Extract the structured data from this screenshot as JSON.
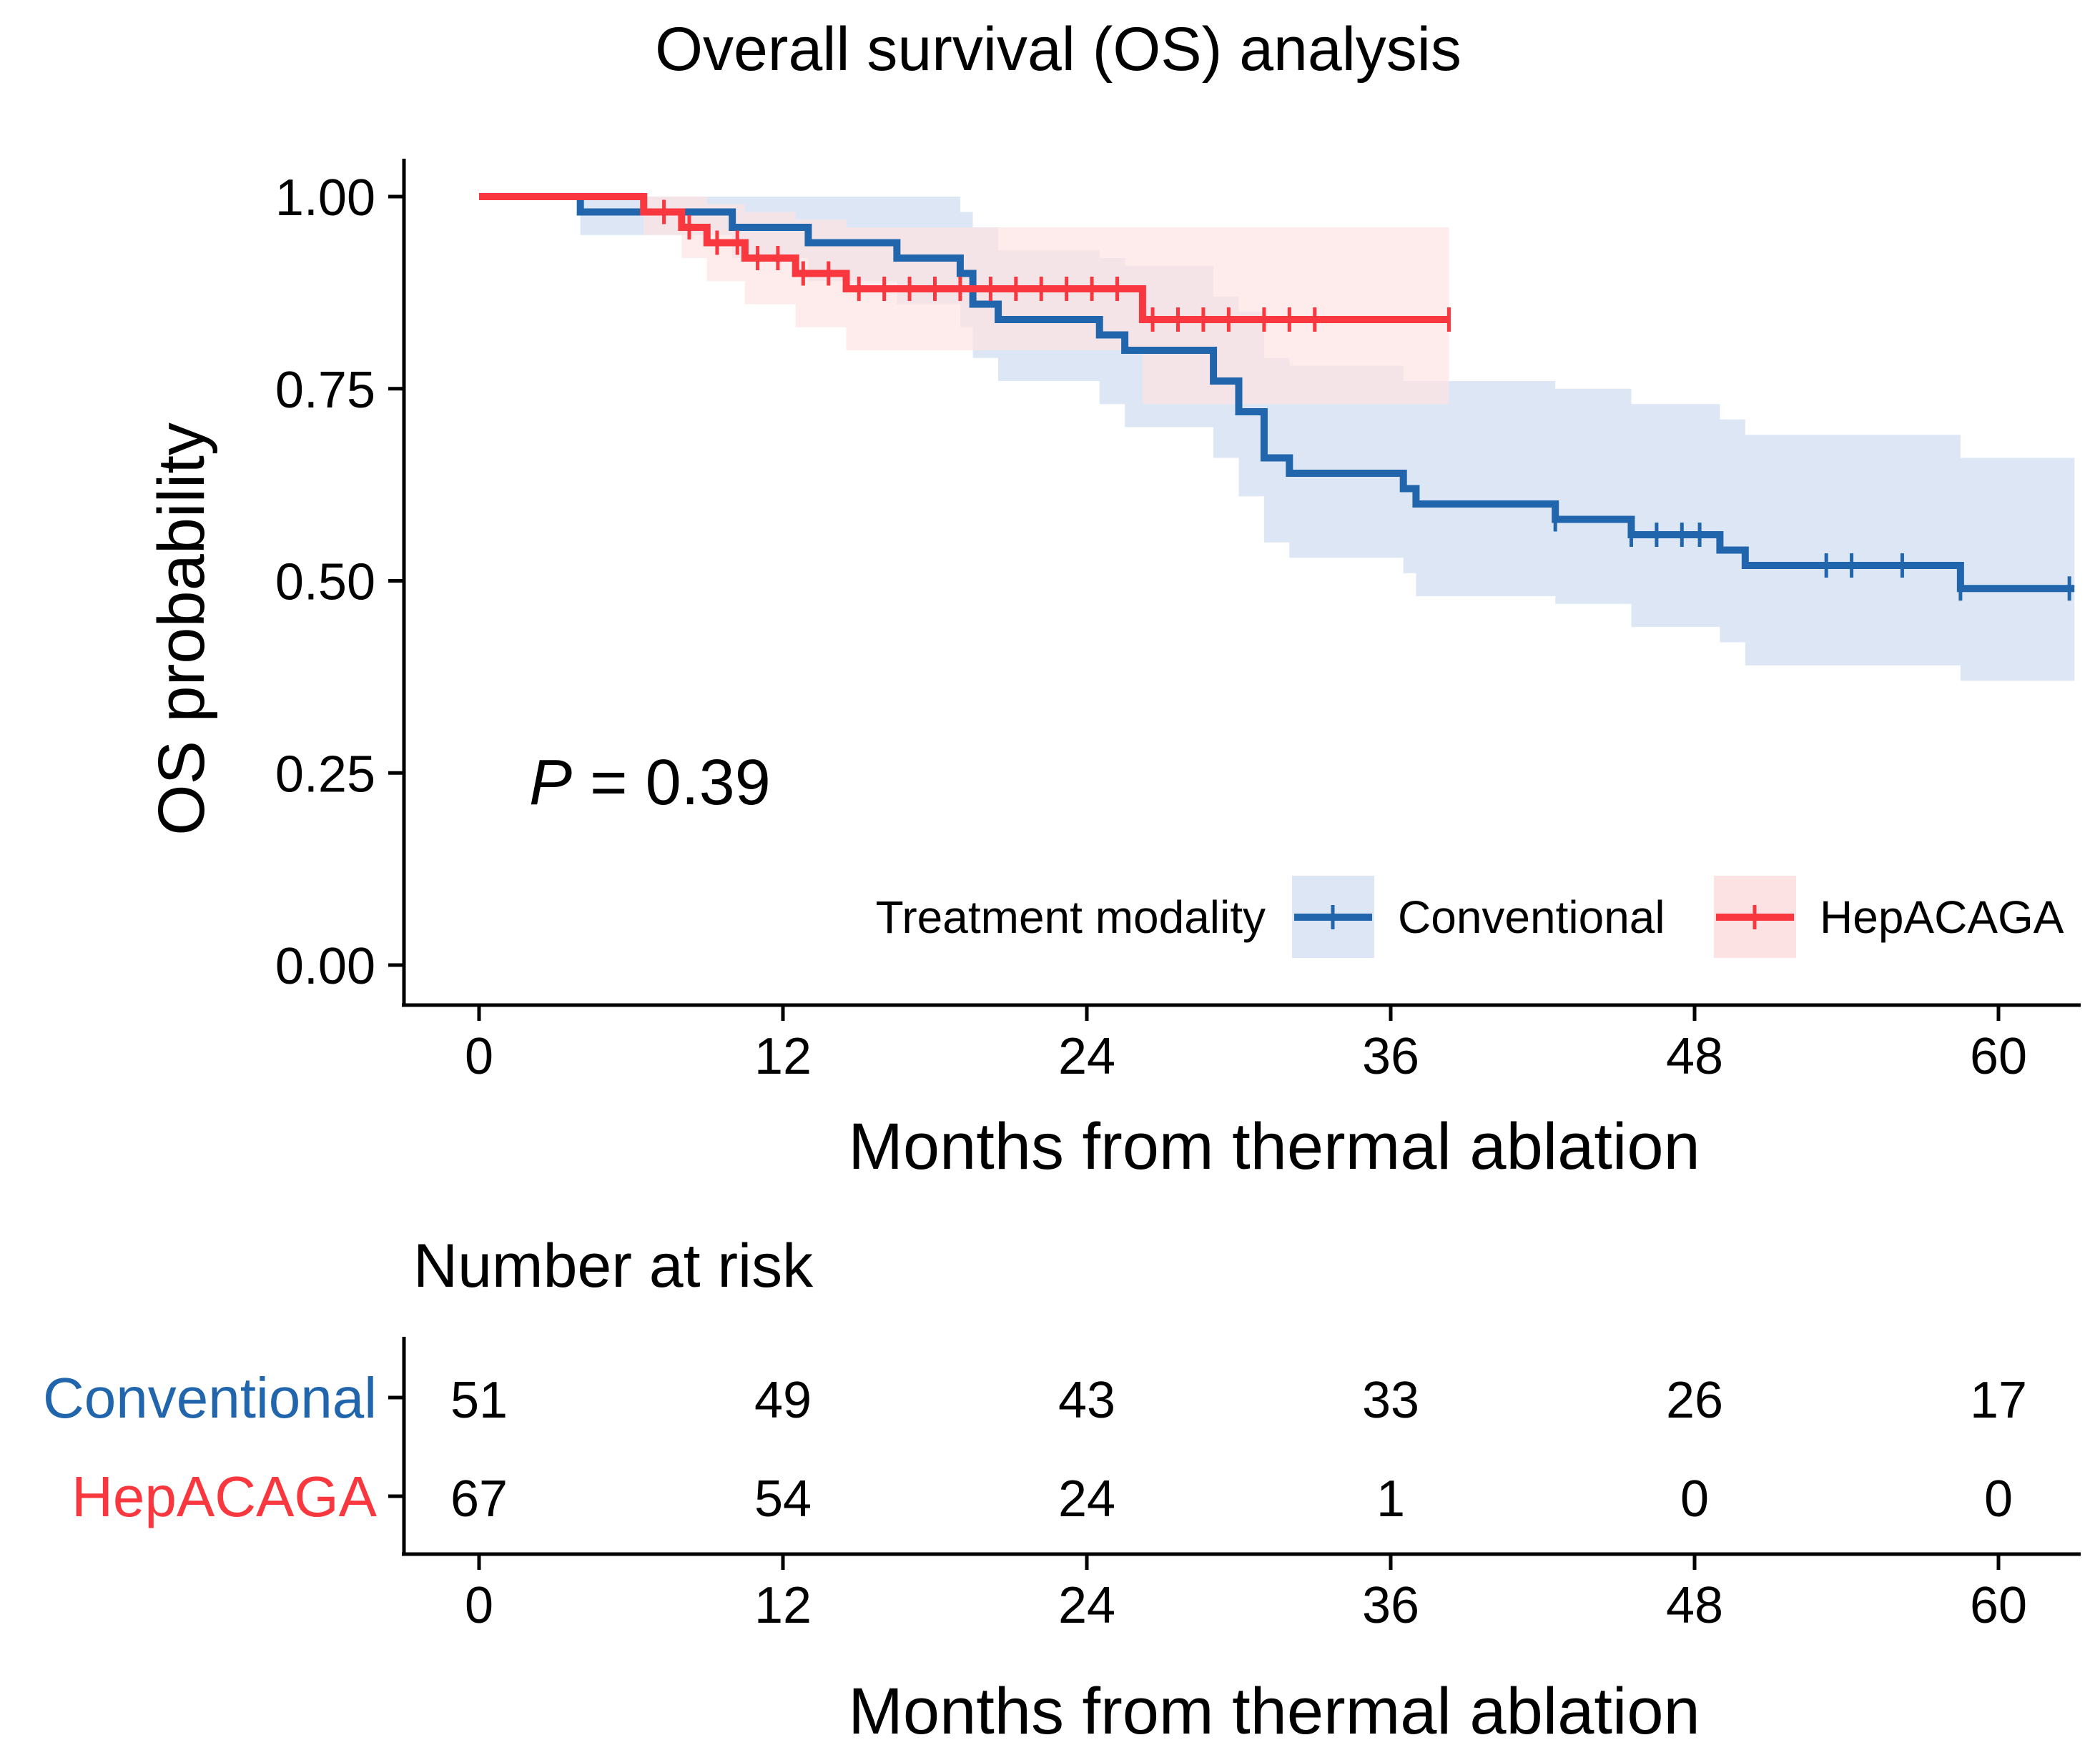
{
  "chart_data": [
    {
      "type": "line",
      "subtype": "kaplan-meier",
      "title": "Overall survival (OS) analysis",
      "xlabel": "Months from thermal ablation",
      "ylabel": "OS probability",
      "xlim": [
        0,
        63
      ],
      "ylim": [
        0,
        1
      ],
      "x_ticks": [
        "0",
        "12",
        "24",
        "36",
        "48",
        "60"
      ],
      "y_ticks": [
        "0.00",
        "0.25",
        "0.50",
        "0.75",
        "1.00"
      ],
      "annotation": {
        "p_label": "P",
        "p_text": " = 0.39"
      },
      "legend": {
        "title": "Treatment modality",
        "position": "bottom-right"
      },
      "series": [
        {
          "name": "Conventional",
          "color": "#2166AC",
          "band_color": "#DCE6F4",
          "steps": [
            [
              0,
              1.0
            ],
            [
              4,
              0.98
            ],
            [
              9,
              0.98
            ],
            [
              10,
              0.96
            ],
            [
              12.5,
              0.96
            ],
            [
              13,
              0.94
            ],
            [
              16,
              0.94
            ],
            [
              16.5,
              0.92
            ],
            [
              18.5,
              0.92
            ],
            [
              19,
              0.9
            ],
            [
              19.5,
              0.86
            ],
            [
              20.5,
              0.84
            ],
            [
              24,
              0.84
            ],
            [
              24.5,
              0.82
            ],
            [
              25.5,
              0.8
            ],
            [
              28.5,
              0.8
            ],
            [
              29,
              0.76
            ],
            [
              30,
              0.72
            ],
            [
              31,
              0.66
            ],
            [
              32,
              0.64
            ],
            [
              36,
              0.64
            ],
            [
              36.5,
              0.62
            ],
            [
              37,
              0.6
            ],
            [
              42,
              0.6
            ],
            [
              42.5,
              0.58
            ],
            [
              45,
              0.58
            ],
            [
              45.5,
              0.56
            ],
            [
              48.5,
              0.56
            ],
            [
              49,
              0.54
            ],
            [
              50,
              0.52
            ],
            [
              58,
              0.52
            ],
            [
              58.5,
              0.49
            ],
            [
              63,
              0.49
            ]
          ],
          "lower": [
            [
              0,
              1.0
            ],
            [
              4,
              0.95
            ],
            [
              9,
              0.95
            ],
            [
              10,
              0.92
            ],
            [
              12.5,
              0.92
            ],
            [
              13,
              0.89
            ],
            [
              16,
              0.89
            ],
            [
              16.5,
              0.86
            ],
            [
              18.5,
              0.86
            ],
            [
              19,
              0.83
            ],
            [
              19.5,
              0.79
            ],
            [
              20.5,
              0.76
            ],
            [
              24,
              0.76
            ],
            [
              24.5,
              0.73
            ],
            [
              25.5,
              0.7
            ],
            [
              28.5,
              0.7
            ],
            [
              29,
              0.66
            ],
            [
              30,
              0.61
            ],
            [
              31,
              0.55
            ],
            [
              32,
              0.53
            ],
            [
              36,
              0.53
            ],
            [
              36.5,
              0.51
            ],
            [
              37,
              0.48
            ],
            [
              42,
              0.48
            ],
            [
              42.5,
              0.47
            ],
            [
              45,
              0.47
            ],
            [
              45.5,
              0.44
            ],
            [
              48.5,
              0.44
            ],
            [
              49,
              0.42
            ],
            [
              50,
              0.39
            ],
            [
              58,
              0.39
            ],
            [
              58.5,
              0.37
            ],
            [
              63,
              0.37
            ]
          ],
          "upper": [
            [
              0,
              1.0
            ],
            [
              4,
              1.0
            ],
            [
              9,
              1.0
            ],
            [
              10,
              1.0
            ],
            [
              12.5,
              1.0
            ],
            [
              13,
              1.0
            ],
            [
              16,
              1.0
            ],
            [
              16.5,
              1.0
            ],
            [
              18.5,
              1.0
            ],
            [
              19,
              0.98
            ],
            [
              19.5,
              0.96
            ],
            [
              20.5,
              0.93
            ],
            [
              24,
              0.93
            ],
            [
              24.5,
              0.92
            ],
            [
              25.5,
              0.91
            ],
            [
              28.5,
              0.91
            ],
            [
              29,
              0.87
            ],
            [
              30,
              0.85
            ],
            [
              31,
              0.79
            ],
            [
              32,
              0.78
            ],
            [
              36,
              0.78
            ],
            [
              36.5,
              0.76
            ],
            [
              37,
              0.76
            ],
            [
              42,
              0.76
            ],
            [
              42.5,
              0.75
            ],
            [
              45,
              0.75
            ],
            [
              45.5,
              0.73
            ],
            [
              48.5,
              0.73
            ],
            [
              49,
              0.71
            ],
            [
              50,
              0.69
            ],
            [
              58,
              0.69
            ],
            [
              58.5,
              0.66
            ],
            [
              63,
              0.66
            ]
          ],
          "censored": [
            42.5,
            45.5,
            46.5,
            47.5,
            48.2,
            53.2,
            54.2,
            56.2,
            58.5,
            62.8
          ]
        },
        {
          "name": "HepACAGA",
          "color": "#F8383E",
          "band_color": "#FDE2E3",
          "steps": [
            [
              0,
              1.0
            ],
            [
              6,
              1.0
            ],
            [
              6.5,
              0.98
            ],
            [
              8,
              0.96
            ],
            [
              9,
              0.94
            ],
            [
              10.5,
              0.92
            ],
            [
              12.5,
              0.9
            ],
            [
              14.5,
              0.88
            ],
            [
              26,
              0.88
            ],
            [
              26.2,
              0.84
            ],
            [
              38.3,
              0.84
            ]
          ],
          "lower": [
            [
              0,
              1.0
            ],
            [
              6,
              1.0
            ],
            [
              6.5,
              0.95
            ],
            [
              8,
              0.92
            ],
            [
              9,
              0.89
            ],
            [
              10.5,
              0.86
            ],
            [
              12.5,
              0.83
            ],
            [
              14.5,
              0.8
            ],
            [
              26,
              0.8
            ],
            [
              26.2,
              0.73
            ],
            [
              38.3,
              0.73
            ]
          ],
          "upper": [
            [
              0,
              1.0
            ],
            [
              6,
              1.0
            ],
            [
              6.5,
              1.0
            ],
            [
              8,
              1.0
            ],
            [
              9,
              0.99
            ],
            [
              10.5,
              0.98
            ],
            [
              12.5,
              0.97
            ],
            [
              14.5,
              0.96
            ],
            [
              26,
              0.96
            ],
            [
              26.2,
              0.96
            ],
            [
              38.3,
              0.96
            ]
          ],
          "censored": [
            7.3,
            8.3,
            9.4,
            10.2,
            11.0,
            11.8,
            12.8,
            13.8,
            15.0,
            16.0,
            17.0,
            18.0,
            19.0,
            20.2,
            21.2,
            22.2,
            23.2,
            24.2,
            25.2,
            26.6,
            27.6,
            28.6,
            29.6,
            31.0,
            32.0,
            33.0,
            38.3
          ]
        }
      ]
    },
    {
      "type": "table",
      "title": "Number at risk",
      "xlabel": "Months from thermal ablation",
      "x_ticks": [
        "0",
        "12",
        "24",
        "36",
        "48",
        "60"
      ],
      "rows": [
        {
          "name": "Conventional",
          "color": "#2166AC",
          "values": [
            "51",
            "49",
            "43",
            "33",
            "26",
            "17"
          ]
        },
        {
          "name": "HepACAGA",
          "color": "#F8383E",
          "values": [
            "67",
            "54",
            "24",
            "1",
            "0",
            "0"
          ]
        }
      ]
    }
  ]
}
